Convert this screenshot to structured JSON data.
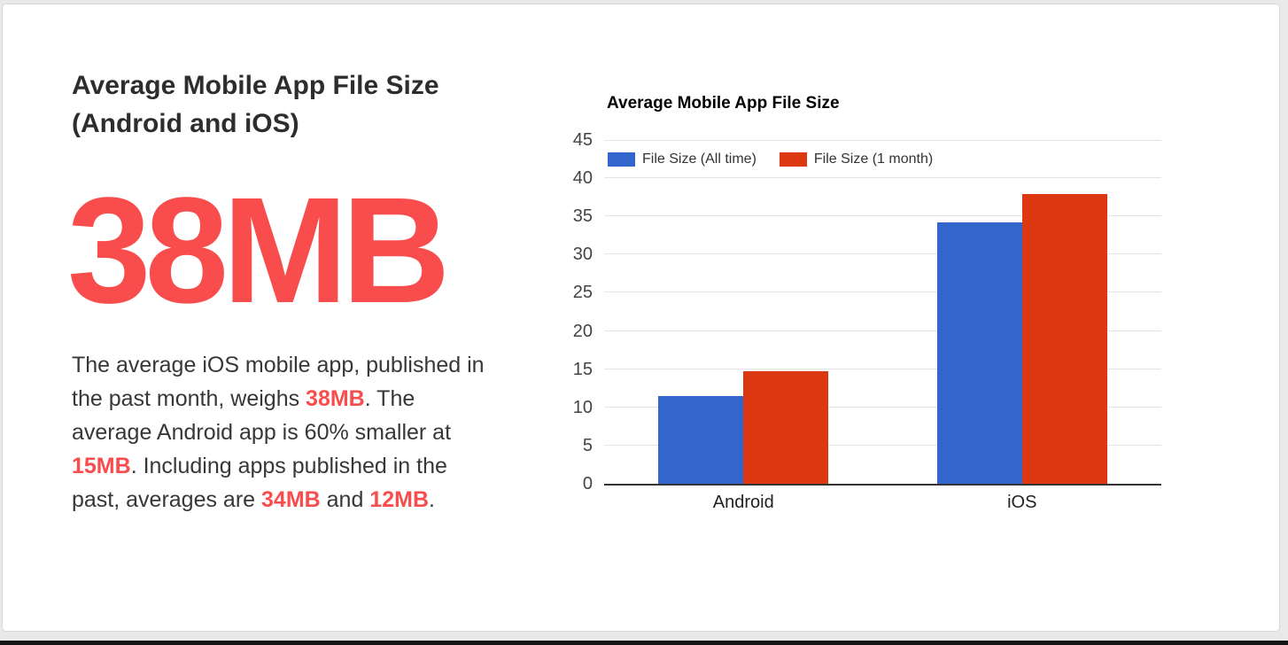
{
  "window": {
    "background_color": "#e9e9e9",
    "card_background": "#ffffff",
    "card_border_color": "#d9d9d9",
    "bottom_strip_color": "#161616"
  },
  "stat_panel": {
    "heading": "Average Mobile App File Size (Android and iOS)",
    "headline_value": "38MB",
    "accent_color": "#f94d4d",
    "heading_color": "#2d2d2d",
    "body_text_color": "#373737",
    "description_segments": [
      {
        "text": "The average iOS mobile app, published in the past month, weighs ",
        "highlight": false
      },
      {
        "text": "38MB",
        "highlight": true
      },
      {
        "text": ". The average Android app is 60% smaller at ",
        "highlight": false
      },
      {
        "text": "15MB",
        "highlight": true
      },
      {
        "text": ". Including apps published in the past, averages are ",
        "highlight": false
      },
      {
        "text": "34MB",
        "highlight": true
      },
      {
        "text": " and ",
        "highlight": false
      },
      {
        "text": "12MB",
        "highlight": true
      },
      {
        "text": ".",
        "highlight": false
      }
    ]
  },
  "chart_data": {
    "type": "bar",
    "title": "Average Mobile App File Size",
    "categories": [
      "Android",
      "iOS"
    ],
    "series": [
      {
        "name": "File Size (All time)",
        "color": "#3366cc",
        "values": [
          11.5,
          34.2
        ]
      },
      {
        "name": "File Size (1 month)",
        "color": "#dc3912",
        "values": [
          14.7,
          37.9
        ]
      }
    ],
    "xlabel": "",
    "ylabel": "",
    "ylim": [
      0,
      45
    ],
    "ytick_step": 5,
    "yticks": [
      0,
      5,
      10,
      15,
      20,
      25,
      30,
      35,
      40,
      45
    ],
    "grid": true,
    "gridline_color": "#e3e3e3",
    "baseline_color": "#333333",
    "axis_label_color": "#444444",
    "legend_position": "top-left-inside"
  }
}
